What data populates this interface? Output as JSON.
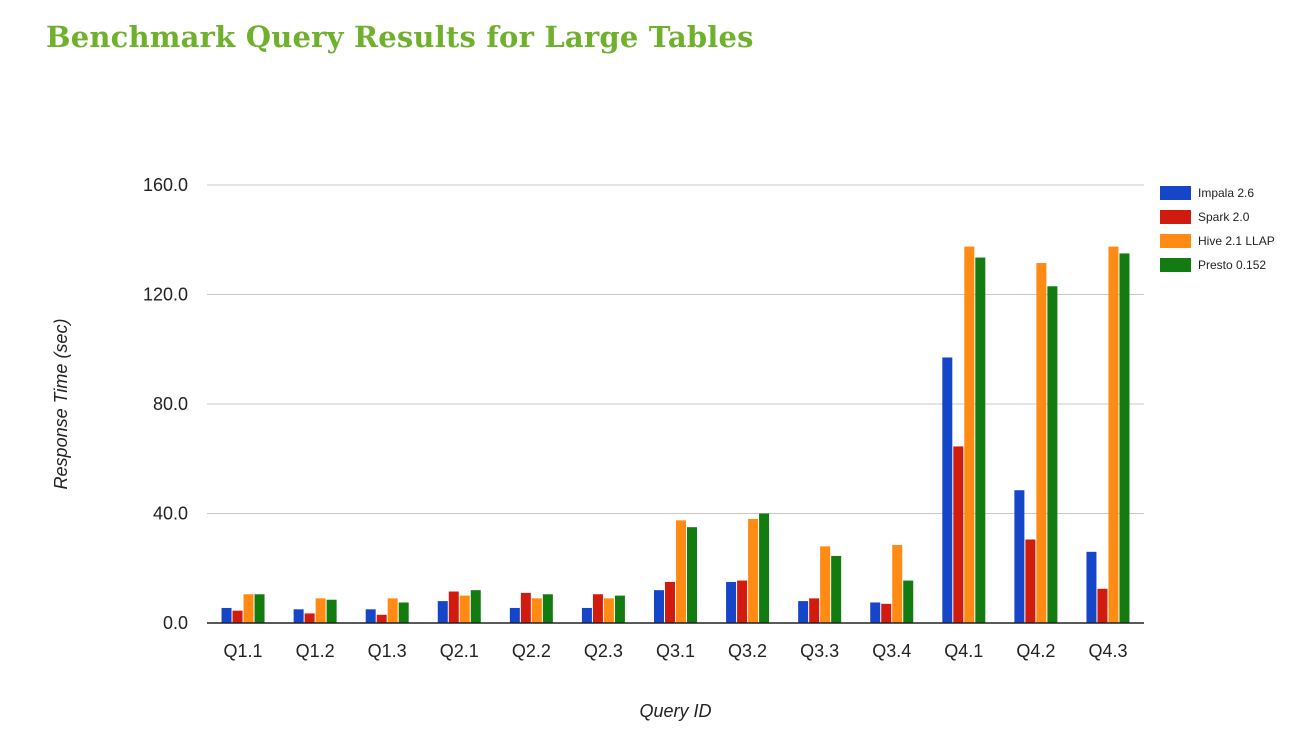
{
  "page": {
    "title": "Benchmark Query Results for Large Tables"
  },
  "chart_data": {
    "type": "bar",
    "title": "",
    "xlabel": "Query ID",
    "ylabel": "Response Time (sec)",
    "ylim": [
      0,
      160
    ],
    "yticks": [
      0,
      40,
      80,
      120,
      160
    ],
    "ytick_labels": [
      "0.0",
      "40.0",
      "80.0",
      "120.0",
      "160.0"
    ],
    "grid": true,
    "legend_position": "right",
    "categories": [
      "Q1.1",
      "Q1.2",
      "Q1.3",
      "Q2.1",
      "Q2.2",
      "Q2.3",
      "Q3.1",
      "Q3.2",
      "Q3.3",
      "Q3.4",
      "Q4.1",
      "Q4.2",
      "Q4.3"
    ],
    "series": [
      {
        "name": "Impala 2.6",
        "color": "#1546c8",
        "values": [
          5.5,
          5.0,
          5.0,
          8.0,
          5.5,
          5.5,
          12.0,
          15.0,
          8.0,
          7.5,
          97.0,
          48.5,
          26.0
        ]
      },
      {
        "name": "Spark 2.0",
        "color": "#d11b0f",
        "values": [
          4.5,
          3.5,
          3.0,
          11.5,
          11.0,
          10.5,
          15.0,
          15.5,
          9.0,
          7.0,
          64.5,
          30.5,
          12.5
        ]
      },
      {
        "name": "Hive 2.1 LLAP",
        "color": "#ff8a14",
        "values": [
          10.5,
          9.0,
          9.0,
          10.0,
          9.0,
          9.0,
          37.5,
          38.0,
          28.0,
          28.5,
          137.5,
          131.5,
          137.5
        ]
      },
      {
        "name": "Presto 0.152",
        "color": "#137c10",
        "values": [
          10.5,
          8.5,
          7.5,
          12.0,
          10.5,
          10.0,
          35.0,
          40.0,
          24.5,
          15.5,
          133.5,
          123.0,
          135.0
        ]
      }
    ]
  }
}
